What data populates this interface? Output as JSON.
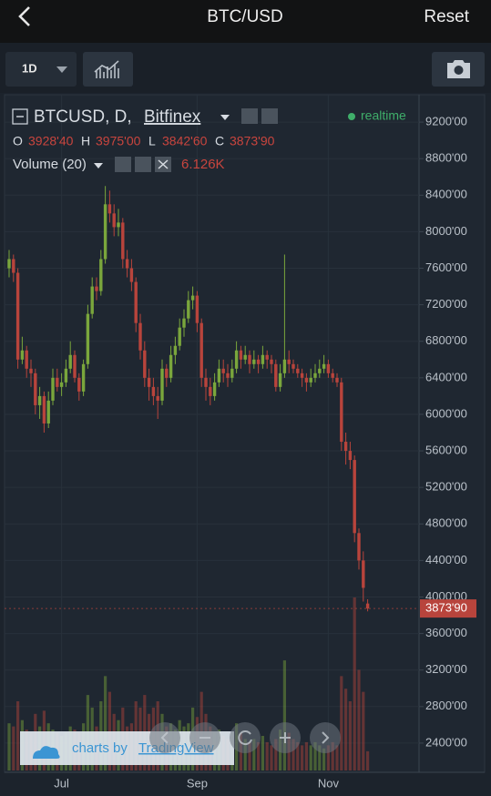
{
  "header": {
    "title": "BTC/USD",
    "action": "Reset"
  },
  "toolbar": {
    "interval": "1D"
  },
  "chart_data": {
    "type": "candlestick",
    "symbol": "BTCUSD, D,",
    "exchange": "Bitfinex",
    "status": "realtime",
    "ohlc_legend": [
      {
        "key": "O",
        "value": "3928'40"
      },
      {
        "key": "H",
        "value": "3975'00"
      },
      {
        "key": "L",
        "value": "3842'60"
      },
      {
        "key": "C",
        "value": "3873'90"
      }
    ],
    "volume_legend": "Volume (20)",
    "volume_value": "6.126K",
    "categories": [
      null,
      null,
      null,
      null,
      null,
      null,
      null,
      null,
      null,
      null,
      null,
      null,
      "Jul",
      null,
      null,
      null,
      null,
      null,
      null,
      null,
      null,
      null,
      null,
      null,
      null,
      null,
      null,
      null,
      null,
      null,
      null,
      null,
      null,
      null,
      null,
      null,
      null,
      null,
      null,
      null,
      null,
      null,
      null,
      "Sep",
      null,
      null,
      null,
      null,
      null,
      null,
      null,
      null,
      null,
      null,
      null,
      null,
      null,
      null,
      null,
      null,
      null,
      null,
      null,
      null,
      null,
      null,
      null,
      null,
      null,
      null,
      null,
      null,
      null,
      "Nov",
      null,
      null,
      null,
      null,
      null,
      null,
      null,
      null,
      null
    ],
    "open": [
      7600,
      7700,
      7550,
      6600,
      6700,
      6500,
      6450,
      6100,
      6200,
      5900,
      6150,
      6400,
      6300,
      6350,
      6500,
      6650,
      6400,
      6250,
      6550,
      7100,
      7400,
      7350,
      7700,
      8300,
      8200,
      8050,
      8100,
      7700,
      7600,
      7450,
      7000,
      6700,
      6400,
      6300,
      6200,
      6150,
      6500,
      6400,
      6650,
      6750,
      6950,
      7050,
      7250,
      7300,
      7000,
      6400,
      6300,
      6200,
      6350,
      6500,
      6450,
      6400,
      6500,
      6700,
      6600,
      6650,
      6550,
      6600,
      6550,
      6650,
      6600,
      6550,
      6300,
      6450,
      6600,
      6550,
      6500,
      6450,
      6400,
      6350,
      6400,
      6450,
      6500,
      6550,
      6450,
      6400,
      6350,
      5700,
      5600,
      5500,
      4700,
      4400,
      3928.4
    ],
    "high": [
      7800,
      7750,
      7600,
      6850,
      6750,
      6600,
      6500,
      6300,
      6250,
      6250,
      6500,
      6500,
      6450,
      6600,
      6800,
      6700,
      6450,
      6600,
      7200,
      7500,
      7500,
      7800,
      8500,
      8450,
      8300,
      8250,
      8150,
      7800,
      7700,
      7500,
      7100,
      6800,
      6500,
      6400,
      6300,
      6600,
      6550,
      6750,
      6850,
      7050,
      7150,
      7350,
      7400,
      7350,
      7050,
      6500,
      6400,
      6450,
      6600,
      6600,
      6550,
      6600,
      6800,
      6750,
      6750,
      6700,
      6700,
      6650,
      6750,
      6700,
      6650,
      6600,
      6550,
      7750,
      6700,
      6600,
      6550,
      6500,
      6450,
      6500,
      6550,
      6600,
      6650,
      6600,
      6500,
      6450,
      6400,
      5800,
      5700,
      5550,
      4750,
      4500,
      3975
    ],
    "low": [
      7500,
      7450,
      6500,
      6550,
      6400,
      6300,
      6000,
      5950,
      5800,
      5850,
      6100,
      6250,
      6200,
      6300,
      6450,
      6350,
      6150,
      6200,
      6500,
      7050,
      7250,
      7300,
      7650,
      8100,
      7950,
      7950,
      7600,
      7500,
      7350,
      6900,
      6600,
      6300,
      6150,
      6100,
      5950,
      6100,
      6300,
      6350,
      6550,
      6700,
      6850,
      7000,
      7150,
      6900,
      6300,
      6150,
      6100,
      6150,
      6300,
      6350,
      6300,
      6350,
      6450,
      6500,
      6550,
      6450,
      6500,
      6450,
      6500,
      6500,
      6450,
      6250,
      6250,
      6400,
      6450,
      6450,
      6400,
      6300,
      6250,
      6300,
      6350,
      6400,
      6450,
      6400,
      6350,
      6300,
      5600,
      5450,
      5400,
      4600,
      4300,
      3950,
      3842.6
    ],
    "close": [
      7700,
      7550,
      6600,
      6700,
      6500,
      6450,
      6100,
      6200,
      5900,
      6150,
      6400,
      6300,
      6350,
      6500,
      6650,
      6400,
      6250,
      6550,
      7100,
      7400,
      7350,
      7700,
      8300,
      8200,
      8050,
      8100,
      7700,
      7600,
      7450,
      7000,
      6700,
      6400,
      6300,
      6200,
      6150,
      6500,
      6400,
      6650,
      6750,
      6950,
      7050,
      7250,
      7300,
      7000,
      6400,
      6300,
      6200,
      6350,
      6500,
      6450,
      6400,
      6500,
      6700,
      6600,
      6650,
      6550,
      6600,
      6550,
      6650,
      6600,
      6550,
      6300,
      6450,
      6600,
      6550,
      6500,
      6450,
      6400,
      6350,
      6400,
      6450,
      6500,
      6550,
      6450,
      6400,
      6350,
      5700,
      5600,
      5500,
      4700,
      4400,
      4100,
      3873.9
    ],
    "volume": [
      15000,
      14000,
      22000,
      16000,
      13000,
      12000,
      18000,
      14000,
      19000,
      15000,
      13000,
      12000,
      11000,
      12000,
      14000,
      13000,
      12000,
      15000,
      24000,
      20000,
      14000,
      22000,
      30000,
      25000,
      18000,
      16000,
      20000,
      14000,
      15000,
      22000,
      20000,
      24000,
      18000,
      20000,
      22000,
      18000,
      14000,
      15000,
      13000,
      16000,
      14000,
      15000,
      20000,
      17000,
      25000,
      18000,
      14000,
      12000,
      13000,
      11000,
      10000,
      12000,
      15000,
      12000,
      10000,
      9000,
      10000,
      9000,
      11000,
      9000,
      8000,
      10000,
      13000,
      35000,
      12000,
      10000,
      9000,
      8000,
      9000,
      8000,
      9000,
      8000,
      7000,
      8000,
      9000,
      8000,
      30000,
      26000,
      22000,
      55000,
      32000,
      25000,
      6126
    ],
    "up_color": "#7aa63c",
    "down_color": "#b8443c",
    "ylim": [
      2100,
      9500
    ],
    "yticks": [
      {
        "value": 2400,
        "label": "2400'00"
      },
      {
        "value": 2800,
        "label": "2800'00"
      },
      {
        "value": 3200,
        "label": "3200'00"
      },
      {
        "value": 3600,
        "label": "3600'00"
      },
      {
        "value": 4000,
        "label": "4000'00"
      },
      {
        "value": 4400,
        "label": "4400'00"
      },
      {
        "value": 4800,
        "label": "4800'00"
      },
      {
        "value": 5200,
        "label": "5200'00"
      },
      {
        "value": 5600,
        "label": "5600'00"
      },
      {
        "value": 6000,
        "label": "6000'00"
      },
      {
        "value": 6400,
        "label": "6400'00"
      },
      {
        "value": 6800,
        "label": "6800'00"
      },
      {
        "value": 7200,
        "label": "7200'00"
      },
      {
        "value": 7600,
        "label": "7600'00"
      },
      {
        "value": 8000,
        "label": "8000'00"
      },
      {
        "value": 8400,
        "label": "8400'00"
      },
      {
        "value": 8800,
        "label": "8800'00"
      },
      {
        "value": 9200,
        "label": "9200'00"
      }
    ],
    "last_price": {
      "value": 3873.9,
      "label": "3873'90"
    },
    "grid": true
  },
  "watermark": {
    "prefix": "charts by",
    "brand": "TradingView"
  }
}
